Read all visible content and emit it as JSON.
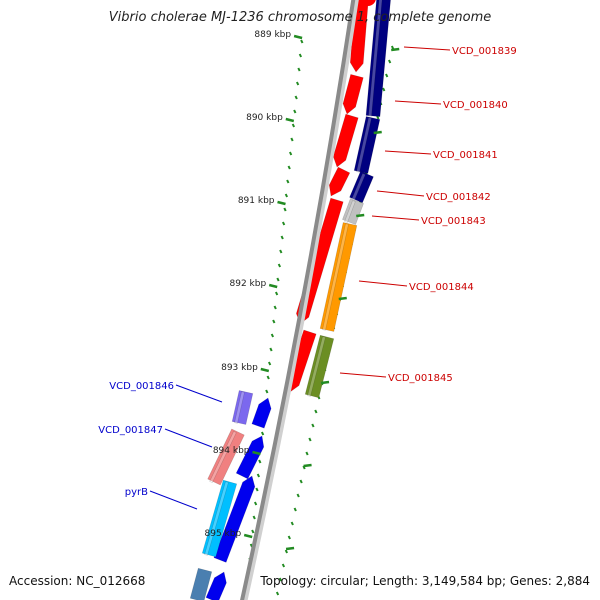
{
  "title": "Vibrio cholerae MJ-1236 chromosome 1, complete genome",
  "accession": "Accession: NC_012668",
  "summary": "Topology: circular; Length: 3,149,584 bp; Genes: 2,884",
  "ticks": [
    {
      "label": "889 kbp",
      "kbp": 889
    },
    {
      "label": "890 kbp",
      "kbp": 890
    },
    {
      "label": "891 kbp",
      "kbp": 891
    },
    {
      "label": "892 kbp",
      "kbp": 892
    },
    {
      "label": "893 kbp",
      "kbp": 893
    },
    {
      "label": "894 kbp",
      "kbp": 894
    },
    {
      "label": "895 kbp",
      "kbp": 895
    }
  ],
  "colors": {
    "forward_label": "#cc0000",
    "reverse_label": "#0000cc",
    "backbone": "#8a8a8a",
    "tick": "#228b22",
    "cds_forward": "#ff0000",
    "cds_reverse": "#0000ee"
  },
  "genes": [
    {
      "label": "VCD_001839",
      "strand": "forward",
      "color": "#000080"
    },
    {
      "label": "VCD_001840",
      "strand": "forward",
      "color": "#000080"
    },
    {
      "label": "VCD_001841",
      "strand": "forward",
      "color": "#000080"
    },
    {
      "label": "VCD_001842",
      "strand": "forward",
      "color": "#c0c0c0"
    },
    {
      "label": "VCD_001843",
      "strand": "forward",
      "color": "#ff9900"
    },
    {
      "label": "VCD_001844",
      "strand": "forward",
      "color": "#6b8e23"
    },
    {
      "label": "VCD_001845",
      "strand": "forward",
      "color": "#7b68ee"
    },
    {
      "label": "VCD_001846",
      "strand": "reverse",
      "color": "#f08080"
    },
    {
      "label": "VCD_001847",
      "strand": "reverse",
      "color": "#00bfff"
    },
    {
      "label": "pyrB",
      "strand": "reverse",
      "color": "#00bfff"
    }
  ]
}
